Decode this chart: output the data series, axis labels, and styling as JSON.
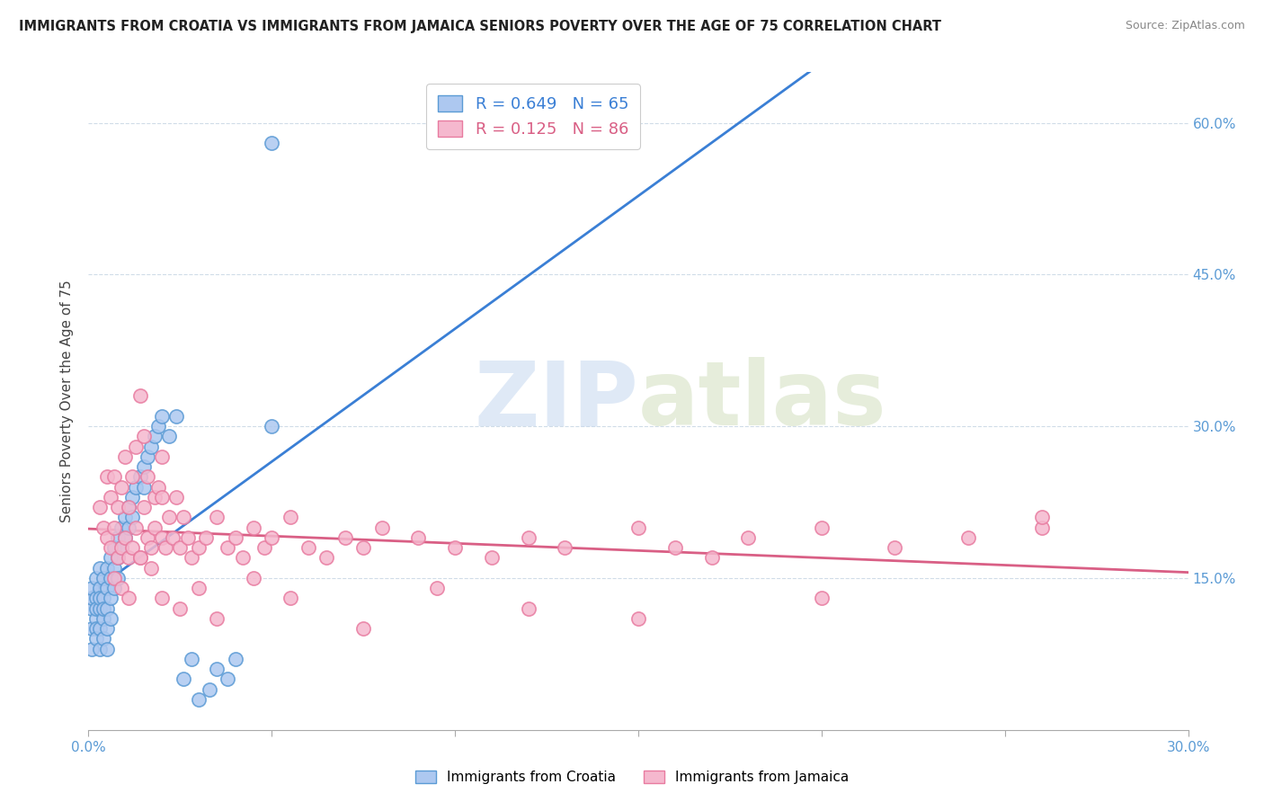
{
  "title": "IMMIGRANTS FROM CROATIA VS IMMIGRANTS FROM JAMAICA SENIORS POVERTY OVER THE AGE OF 75 CORRELATION CHART",
  "source": "Source: ZipAtlas.com",
  "ylabel": "Seniors Poverty Over the Age of 75",
  "xlim": [
    0.0,
    0.3
  ],
  "ylim": [
    0.0,
    0.65
  ],
  "ytick_positions": [
    0.15,
    0.3,
    0.45,
    0.6
  ],
  "ytick_labels": [
    "15.0%",
    "30.0%",
    "45.0%",
    "60.0%"
  ],
  "xtick_positions": [
    0.0,
    0.05,
    0.1,
    0.15,
    0.2,
    0.25,
    0.3
  ],
  "xtick_labels": [
    "0.0%",
    "",
    "",
    "",
    "",
    "",
    "30.0%"
  ],
  "croatia_color": "#adc8f0",
  "jamaica_color": "#f5b8ce",
  "croatia_edge_color": "#5b9bd5",
  "jamaica_edge_color": "#e87ba0",
  "croatia_line_color": "#3a7fd5",
  "jamaica_line_color": "#d95f85",
  "croatia_R": 0.649,
  "croatia_N": 65,
  "jamaica_R": 0.125,
  "jamaica_N": 86,
  "grid_color": "#d0dce8",
  "watermark_color": "#c5d8f0",
  "watermark_text": "ZIPatlas",
  "croatia_x": [
    0.001,
    0.001,
    0.001,
    0.001,
    0.001,
    0.002,
    0.002,
    0.002,
    0.002,
    0.002,
    0.002,
    0.003,
    0.003,
    0.003,
    0.003,
    0.003,
    0.003,
    0.004,
    0.004,
    0.004,
    0.004,
    0.004,
    0.005,
    0.005,
    0.005,
    0.005,
    0.005,
    0.006,
    0.006,
    0.006,
    0.006,
    0.007,
    0.007,
    0.007,
    0.008,
    0.008,
    0.008,
    0.009,
    0.009,
    0.01,
    0.01,
    0.011,
    0.011,
    0.012,
    0.012,
    0.013,
    0.014,
    0.015,
    0.015,
    0.016,
    0.017,
    0.018,
    0.019,
    0.02,
    0.022,
    0.024,
    0.026,
    0.028,
    0.03,
    0.033,
    0.035,
    0.038,
    0.04,
    0.05,
    0.05
  ],
  "croatia_y": [
    0.1,
    0.12,
    0.13,
    0.14,
    0.08,
    0.11,
    0.13,
    0.15,
    0.1,
    0.12,
    0.09,
    0.14,
    0.16,
    0.12,
    0.1,
    0.13,
    0.08,
    0.15,
    0.13,
    0.11,
    0.09,
    0.12,
    0.16,
    0.14,
    0.12,
    0.1,
    0.08,
    0.17,
    0.15,
    0.13,
    0.11,
    0.18,
    0.16,
    0.14,
    0.19,
    0.17,
    0.15,
    0.2,
    0.18,
    0.21,
    0.19,
    0.22,
    0.2,
    0.23,
    0.21,
    0.24,
    0.25,
    0.26,
    0.24,
    0.27,
    0.28,
    0.29,
    0.3,
    0.31,
    0.29,
    0.31,
    0.05,
    0.07,
    0.03,
    0.04,
    0.06,
    0.05,
    0.07,
    0.3,
    0.58
  ],
  "jamaica_x": [
    0.003,
    0.004,
    0.005,
    0.005,
    0.006,
    0.006,
    0.007,
    0.007,
    0.008,
    0.008,
    0.009,
    0.009,
    0.01,
    0.01,
    0.011,
    0.011,
    0.012,
    0.012,
    0.013,
    0.013,
    0.014,
    0.015,
    0.015,
    0.016,
    0.016,
    0.017,
    0.018,
    0.018,
    0.019,
    0.02,
    0.02,
    0.021,
    0.022,
    0.023,
    0.024,
    0.025,
    0.026,
    0.027,
    0.028,
    0.03,
    0.032,
    0.035,
    0.038,
    0.04,
    0.042,
    0.045,
    0.048,
    0.05,
    0.055,
    0.06,
    0.065,
    0.07,
    0.075,
    0.08,
    0.09,
    0.1,
    0.11,
    0.12,
    0.13,
    0.15,
    0.16,
    0.17,
    0.18,
    0.2,
    0.22,
    0.24,
    0.26,
    0.007,
    0.009,
    0.011,
    0.014,
    0.017,
    0.02,
    0.025,
    0.03,
    0.035,
    0.045,
    0.055,
    0.075,
    0.095,
    0.12,
    0.15,
    0.2,
    0.26,
    0.014,
    0.02
  ],
  "jamaica_y": [
    0.22,
    0.2,
    0.19,
    0.25,
    0.18,
    0.23,
    0.2,
    0.25,
    0.17,
    0.22,
    0.18,
    0.24,
    0.19,
    0.27,
    0.17,
    0.22,
    0.18,
    0.25,
    0.2,
    0.28,
    0.17,
    0.22,
    0.29,
    0.19,
    0.25,
    0.18,
    0.23,
    0.2,
    0.24,
    0.19,
    0.23,
    0.18,
    0.21,
    0.19,
    0.23,
    0.18,
    0.21,
    0.19,
    0.17,
    0.18,
    0.19,
    0.21,
    0.18,
    0.19,
    0.17,
    0.2,
    0.18,
    0.19,
    0.21,
    0.18,
    0.17,
    0.19,
    0.18,
    0.2,
    0.19,
    0.18,
    0.17,
    0.19,
    0.18,
    0.2,
    0.18,
    0.17,
    0.19,
    0.2,
    0.18,
    0.19,
    0.2,
    0.15,
    0.14,
    0.13,
    0.17,
    0.16,
    0.13,
    0.12,
    0.14,
    0.11,
    0.15,
    0.13,
    0.1,
    0.14,
    0.12,
    0.11,
    0.13,
    0.21,
    0.33,
    0.27
  ]
}
